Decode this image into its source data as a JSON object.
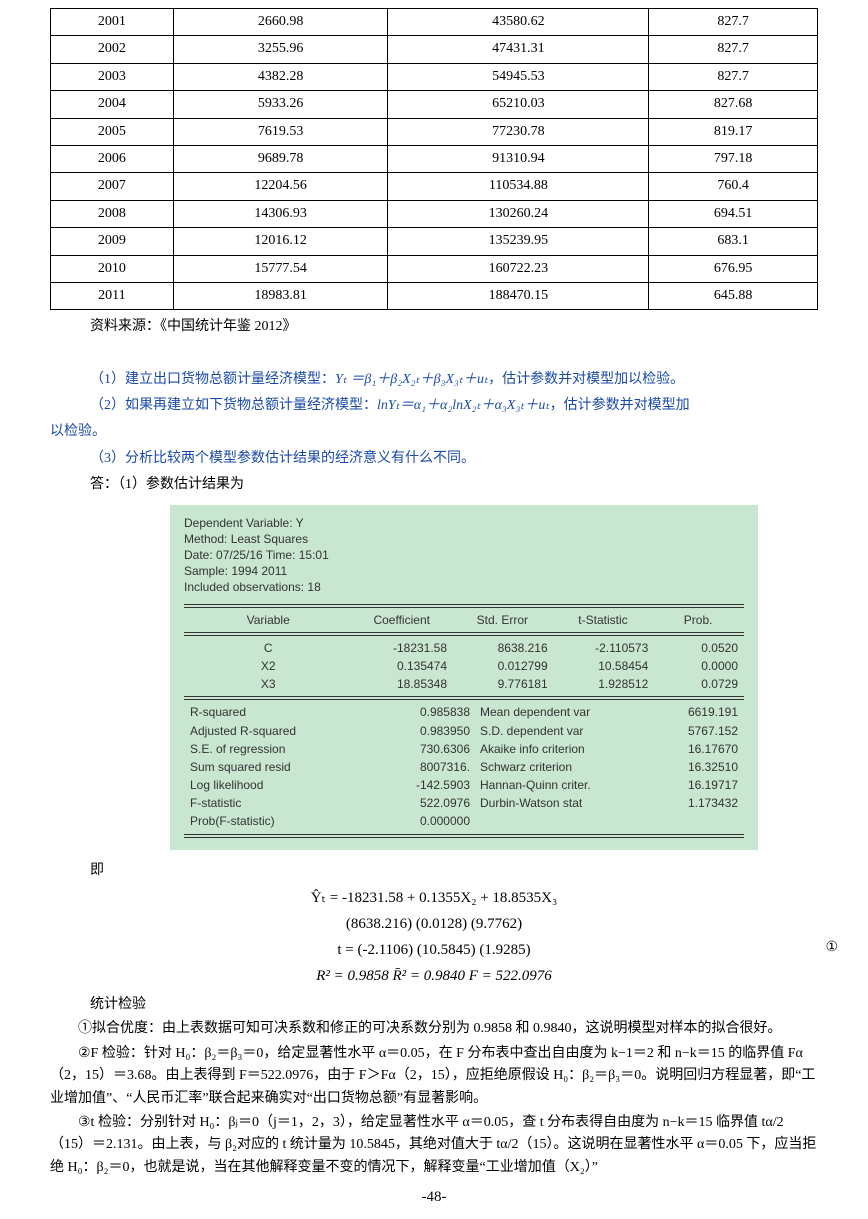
{
  "table": {
    "rows": [
      [
        "2001",
        "2660.98",
        "43580.62",
        "827.7"
      ],
      [
        "2002",
        "3255.96",
        "47431.31",
        "827.7"
      ],
      [
        "2003",
        "4382.28",
        "54945.53",
        "827.7"
      ],
      [
        "2004",
        "5933.26",
        "65210.03",
        "827.68"
      ],
      [
        "2005",
        "7619.53",
        "77230.78",
        "819.17"
      ],
      [
        "2006",
        "9689.78",
        "91310.94",
        "797.18"
      ],
      [
        "2007",
        "12204.56",
        "110534.88",
        "760.4"
      ],
      [
        "2008",
        "14306.93",
        "130260.24",
        "694.51"
      ],
      [
        "2009",
        "12016.12",
        "135239.95",
        "683.1"
      ],
      [
        "2010",
        "15777.54",
        "160722.23",
        "676.95"
      ],
      [
        "2011",
        "18983.81",
        "188470.15",
        "645.88"
      ]
    ],
    "col_widths_pct": [
      16,
      28,
      34,
      22
    ],
    "border_color": "#000000",
    "font_size": 14
  },
  "source": "资料来源：《中国统计年鉴 2012》",
  "q1": {
    "pre": "（1）建立出口货物总额计量经济模型：",
    "eq": "Yₜ ＝β₁＋β₂X₂ₜ＋β₃X₃ₜ＋uₜ",
    "post": "，估计参数并对模型加以检验。"
  },
  "q2": {
    "pre": "（2）如果再建立如下货物总额计量经济模型：",
    "eq": "lnYₜ＝α₁＋α₂lnX₂ₜ＋α₃X₃ₜ＋uₜ",
    "post": "，估计参数并对模型加",
    "cont": "以检验。"
  },
  "q3": "（3）分析比较两个模型参数估计结果的经济意义有什么不同。",
  "ans_intro": "答：（1）参数估计结果为",
  "eviews": {
    "background_color": "#c8e6d0",
    "font_family": "Arial",
    "font_size": 12,
    "header": [
      "Dependent Variable: Y",
      "Method: Least Squares",
      "Date: 07/25/16   Time: 15:01",
      "Sample: 1994 2011",
      "Included observations: 18"
    ],
    "cols": [
      "Variable",
      "Coefficient",
      "Std. Error",
      "t-Statistic",
      "Prob."
    ],
    "coef": [
      [
        "C",
        "-18231.58",
        "8638.216",
        "-2.110573",
        "0.0520"
      ],
      [
        "X2",
        "0.135474",
        "0.012799",
        "10.58454",
        "0.0000"
      ],
      [
        "X3",
        "18.85348",
        "9.776181",
        "1.928512",
        "0.0729"
      ]
    ],
    "stats": [
      [
        "R-squared",
        "0.985838",
        "Mean dependent var",
        "6619.191"
      ],
      [
        "Adjusted R-squared",
        "0.983950",
        "S.D. dependent var",
        "5767.152"
      ],
      [
        "S.E. of regression",
        "730.6306",
        "Akaike info criterion",
        "16.17670"
      ],
      [
        "Sum squared resid",
        "8007316.",
        "Schwarz criterion",
        "16.32510"
      ],
      [
        "Log likelihood",
        "-142.5903",
        "Hannan-Quinn criter.",
        "16.19717"
      ],
      [
        "F-statistic",
        "522.0976",
        "Durbin-Watson stat",
        "1.173432"
      ],
      [
        "Prob(F-statistic)",
        "0.000000",
        "",
        ""
      ]
    ]
  },
  "ji": "即",
  "equations": {
    "line1": "Ŷₜ = -18231.58 + 0.1355X₂ + 18.8535X₃",
    "line2": "(8638.216)    (0.0128)    (9.7762)",
    "line3": "t = (-2.1106)    (10.5845)    (1.9285)",
    "line4": "R² = 0.9858    R̄² = 0.9840    F = 522.0976",
    "marker": "①"
  },
  "stat_header": "统计检验",
  "para1": "①拟合优度：由上表数据可知可决系数和修正的可决系数分别为 0.9858 和 0.9840，这说明模型对样本的拟合很好。",
  "para2": "②F 检验：针对 H₀：β₂＝β₃＝0，给定显著性水平 α＝0.05，在 F 分布表中查出自由度为 k−1＝2 和 n−k＝15 的临界值 Fα（2，15）＝3.68。由上表得到 F＝522.0976，由于 F＞Fα（2，15），应拒绝原假设 H₀：β₂＝β₃＝0。说明回归方程显著，即“工业增加值”、“人民币汇率”联合起来确实对“出口货物总额”有显著影响。",
  "para3": "③t 检验：分别针对 H₀：βⱼ＝0（j＝1，2，3），给定显著性水平 α＝0.05，查 t 分布表得自由度为 n−k＝15 临界值 tα/2（15）＝2.131。由上表，与 β₂对应的 t 统计量为 10.5845，其绝对值大于 tα/2（15）。这说明在显著性水平 α＝0.05 下，应当拒绝 H₀：β₂＝0，也就是说，当在其他解释变量不变的情况下，解释变量“工业增加值（X₂）”",
  "pagenum": "-48-",
  "colors": {
    "question_text": "#1a4aa8",
    "body_text": "#000000",
    "eviews_bg": "#c8e6d0",
    "page_bg": "#ffffff"
  }
}
